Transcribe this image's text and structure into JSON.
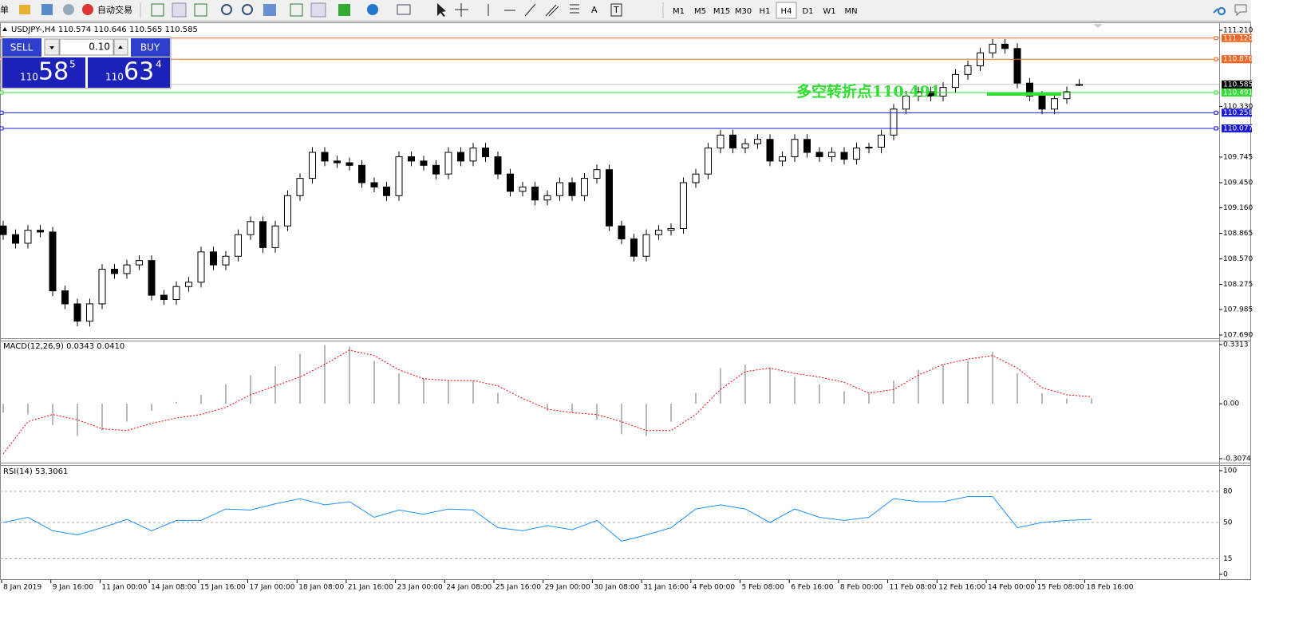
{
  "toolbar": {
    "menu_fragment": "单",
    "auto_trade": "自动交易",
    "text_tool": "A",
    "label_tool": "T",
    "timeframes": [
      "M1",
      "M5",
      "M15",
      "M30",
      "H1",
      "H4",
      "D1",
      "W1",
      "MN"
    ],
    "active_timeframe": "H4"
  },
  "trade_panel": {
    "sell": "SELL",
    "buy": "BUY",
    "lot": "0.10",
    "sell_big": "110",
    "sell_digits": "58",
    "sell_pip": "5",
    "buy_big": "110",
    "buy_digits": "63",
    "buy_pip": "4"
  },
  "main_chart": {
    "header": "USDJPY-,H4  110.574 110.646 110.565 110.585",
    "ylim": [
      107.69,
      111.21
    ],
    "yticks": [
      {
        "value": 111.21,
        "label": "111.210"
      },
      {
        "value": 110.33,
        "label": "110.330"
      },
      {
        "value": 109.745,
        "label": "109.745"
      },
      {
        "value": 109.45,
        "label": "109.450"
      },
      {
        "value": 109.16,
        "label": "109.160"
      },
      {
        "value": 108.865,
        "label": "108.865"
      },
      {
        "value": 108.57,
        "label": "108.570"
      },
      {
        "value": 108.275,
        "label": "108.275"
      },
      {
        "value": 107.985,
        "label": "107.985"
      },
      {
        "value": 107.69,
        "label": "107.690"
      }
    ],
    "levels": [
      {
        "value": 111.12,
        "label": "111.120",
        "color": "#f26522"
      },
      {
        "value": 110.876,
        "label": "110.876",
        "color": "#f26522"
      },
      {
        "value": 110.491,
        "label": "110.491",
        "color": "#33dd33"
      },
      {
        "value": 110.258,
        "label": "110.258",
        "color": "#1a1ad4"
      },
      {
        "value": 110.077,
        "label": "110.077",
        "color": "#1a1ad4"
      }
    ],
    "current": {
      "value": 110.585,
      "label": "110.585"
    },
    "annotation": "多空转折点110.491",
    "candles": [
      [
        108.95,
        109.01,
        108.79,
        108.85
      ],
      [
        108.85,
        108.91,
        108.69,
        108.75
      ],
      [
        108.75,
        108.96,
        108.69,
        108.9
      ],
      [
        108.9,
        108.96,
        108.82,
        108.88
      ],
      [
        108.88,
        108.94,
        108.14,
        108.2
      ],
      [
        108.2,
        108.26,
        107.99,
        108.05
      ],
      [
        108.05,
        108.11,
        107.79,
        107.85
      ],
      [
        107.85,
        108.11,
        107.79,
        108.05
      ],
      [
        108.05,
        108.51,
        107.99,
        108.45
      ],
      [
        108.45,
        108.51,
        108.34,
        108.4
      ],
      [
        108.4,
        108.56,
        108.34,
        108.5
      ],
      [
        108.5,
        108.61,
        108.44,
        108.55
      ],
      [
        108.55,
        108.61,
        108.09,
        108.15
      ],
      [
        108.15,
        108.21,
        108.04,
        108.1
      ],
      [
        108.1,
        108.31,
        108.04,
        108.25
      ],
      [
        108.25,
        108.36,
        108.19,
        108.3
      ],
      [
        108.3,
        108.71,
        108.24,
        108.65
      ],
      [
        108.65,
        108.71,
        108.44,
        108.5
      ],
      [
        108.5,
        108.66,
        108.44,
        108.6
      ],
      [
        108.6,
        108.91,
        108.54,
        108.85
      ],
      [
        108.85,
        109.06,
        108.79,
        109.0
      ],
      [
        109.0,
        109.06,
        108.64,
        108.7
      ],
      [
        108.7,
        109.01,
        108.64,
        108.95
      ],
      [
        108.95,
        109.36,
        108.89,
        109.3
      ],
      [
        109.3,
        109.56,
        109.24,
        109.5
      ],
      [
        109.5,
        109.86,
        109.44,
        109.8
      ],
      [
        109.8,
        109.86,
        109.64,
        109.7
      ],
      [
        109.7,
        109.76,
        109.62,
        109.68
      ],
      [
        109.68,
        109.74,
        109.59,
        109.65
      ],
      [
        109.65,
        109.71,
        109.39,
        109.45
      ],
      [
        109.45,
        109.51,
        109.34,
        109.4
      ],
      [
        109.4,
        109.46,
        109.24,
        109.3
      ],
      [
        109.3,
        109.81,
        109.24,
        109.75
      ],
      [
        109.75,
        109.81,
        109.64,
        109.7
      ],
      [
        109.7,
        109.76,
        109.59,
        109.65
      ],
      [
        109.65,
        109.71,
        109.49,
        109.55
      ],
      [
        109.55,
        109.86,
        109.49,
        109.8
      ],
      [
        109.8,
        109.86,
        109.64,
        109.7
      ],
      [
        109.7,
        109.91,
        109.64,
        109.85
      ],
      [
        109.85,
        109.91,
        109.69,
        109.75
      ],
      [
        109.75,
        109.81,
        109.49,
        109.55
      ],
      [
        109.55,
        109.61,
        109.29,
        109.35
      ],
      [
        109.35,
        109.46,
        109.29,
        109.4
      ],
      [
        109.4,
        109.46,
        109.19,
        109.25
      ],
      [
        109.25,
        109.36,
        109.19,
        109.3
      ],
      [
        109.3,
        109.51,
        109.24,
        109.45
      ],
      [
        109.45,
        109.51,
        109.24,
        109.3
      ],
      [
        109.3,
        109.56,
        109.24,
        109.5
      ],
      [
        109.5,
        109.66,
        109.44,
        109.6
      ],
      [
        109.6,
        109.66,
        108.89,
        108.95
      ],
      [
        108.95,
        109.01,
        108.74,
        108.8
      ],
      [
        108.8,
        108.86,
        108.54,
        108.6
      ],
      [
        108.6,
        108.91,
        108.54,
        108.85
      ],
      [
        108.85,
        108.96,
        108.79,
        108.9
      ],
      [
        108.9,
        108.98,
        108.84,
        108.92
      ],
      [
        108.92,
        109.51,
        108.86,
        109.45
      ],
      [
        109.45,
        109.61,
        109.39,
        109.55
      ],
      [
        109.55,
        109.91,
        109.49,
        109.85
      ],
      [
        109.85,
        110.06,
        109.79,
        110.0
      ],
      [
        110.0,
        110.06,
        109.79,
        109.85
      ],
      [
        109.85,
        109.96,
        109.79,
        109.9
      ],
      [
        109.9,
        110.01,
        109.84,
        109.95
      ],
      [
        109.95,
        110.01,
        109.64,
        109.7
      ],
      [
        109.7,
        109.81,
        109.64,
        109.75
      ],
      [
        109.75,
        110.01,
        109.69,
        109.95
      ],
      [
        109.95,
        110.01,
        109.74,
        109.8
      ],
      [
        109.8,
        109.86,
        109.69,
        109.75
      ],
      [
        109.75,
        109.86,
        109.69,
        109.8
      ],
      [
        109.8,
        109.86,
        109.66,
        109.72
      ],
      [
        109.72,
        109.91,
        109.66,
        109.85
      ],
      [
        109.85,
        109.91,
        109.79,
        109.86
      ],
      [
        109.86,
        110.06,
        109.79,
        110.0
      ],
      [
        110.0,
        110.36,
        109.94,
        110.3
      ],
      [
        110.3,
        110.51,
        110.24,
        110.45
      ],
      [
        110.45,
        110.56,
        110.39,
        110.5
      ],
      [
        110.5,
        110.56,
        110.39,
        110.45
      ],
      [
        110.45,
        110.61,
        110.39,
        110.55
      ],
      [
        110.55,
        110.76,
        110.49,
        110.7
      ],
      [
        110.7,
        110.86,
        110.64,
        110.8
      ],
      [
        110.8,
        111.01,
        110.74,
        110.95
      ],
      [
        110.95,
        111.11,
        110.89,
        111.05
      ],
      [
        111.05,
        111.11,
        110.94,
        111.0
      ],
      [
        111.0,
        111.06,
        110.54,
        110.6
      ],
      [
        110.6,
        110.66,
        110.39,
        110.45
      ],
      [
        110.45,
        110.51,
        110.24,
        110.3
      ],
      [
        110.3,
        110.48,
        110.24,
        110.42
      ],
      [
        110.42,
        110.56,
        110.36,
        110.5
      ],
      [
        110.574,
        110.646,
        110.565,
        110.585
      ]
    ]
  },
  "macd": {
    "label": "MACD(12,26,9) 0.0343 0.0410",
    "ylim": [
      -0.3074,
      0.3313
    ],
    "yticks": [
      0.3313,
      {
        "value": 0,
        "label": "0.00"
      },
      -0.3074
    ],
    "histogram": [
      -0.05,
      -0.06,
      -0.12,
      -0.18,
      -0.15,
      -0.1,
      -0.04,
      0.01,
      0.05,
      0.11,
      0.16,
      0.21,
      0.28,
      0.33,
      0.32,
      0.24,
      0.17,
      0.14,
      0.13,
      0.13,
      0.06,
      0.0,
      -0.04,
      -0.05,
      -0.09,
      -0.17,
      -0.18,
      -0.1,
      0.06,
      0.2,
      0.22,
      0.2,
      0.15,
      0.11,
      0.07,
      0.06,
      0.13,
      0.19,
      0.22,
      0.24,
      0.29,
      0.17,
      0.06,
      0.03,
      0.03
    ],
    "signal": [
      -0.28,
      -0.1,
      -0.06,
      -0.09,
      -0.14,
      -0.15,
      -0.11,
      -0.08,
      -0.06,
      -0.02,
      0.05,
      0.1,
      0.15,
      0.22,
      0.3,
      0.27,
      0.19,
      0.14,
      0.13,
      0.13,
      0.1,
      0.03,
      -0.03,
      -0.05,
      -0.06,
      -0.1,
      -0.15,
      -0.15,
      -0.06,
      0.08,
      0.18,
      0.2,
      0.17,
      0.15,
      0.12,
      0.06,
      0.08,
      0.16,
      0.22,
      0.25,
      0.27,
      0.2,
      0.09,
      0.05,
      0.04
    ]
  },
  "rsi": {
    "label": "RSI(14) 53.3061",
    "ylim": [
      0,
      100
    ],
    "yticks": [
      100,
      80,
      50,
      15,
      0
    ],
    "values": [
      50,
      55,
      42,
      38,
      45,
      53,
      42,
      52,
      52,
      63,
      62,
      68,
      73,
      67,
      70,
      55,
      62,
      58,
      63,
      62,
      45,
      42,
      47,
      43,
      52,
      32,
      38,
      45,
      63,
      67,
      63,
      50,
      63,
      55,
      52,
      55,
      73,
      70,
      70,
      75,
      75,
      45,
      50,
      52,
      53
    ]
  },
  "time_axis": [
    "8 Jan 2019",
    "9 Jan 16:00",
    "11 Jan 00:00",
    "14 Jan 08:00",
    "15 Jan 16:00",
    "17 Jan 00:00",
    "18 Jan 08:00",
    "21 Jan 16:00",
    "23 Jan 00:00",
    "24 Jan 08:00",
    "25 Jan 16:00",
    "29 Jan 00:00",
    "30 Jan 08:00",
    "31 Jan 16:00",
    "4 Feb 00:00",
    "5 Feb 08:00",
    "6 Feb 16:00",
    "8 Feb 00:00",
    "11 Feb 08:00",
    "12 Feb 16:00",
    "14 Feb 00:00",
    "15 Feb 08:00",
    "18 Feb 16:00"
  ]
}
